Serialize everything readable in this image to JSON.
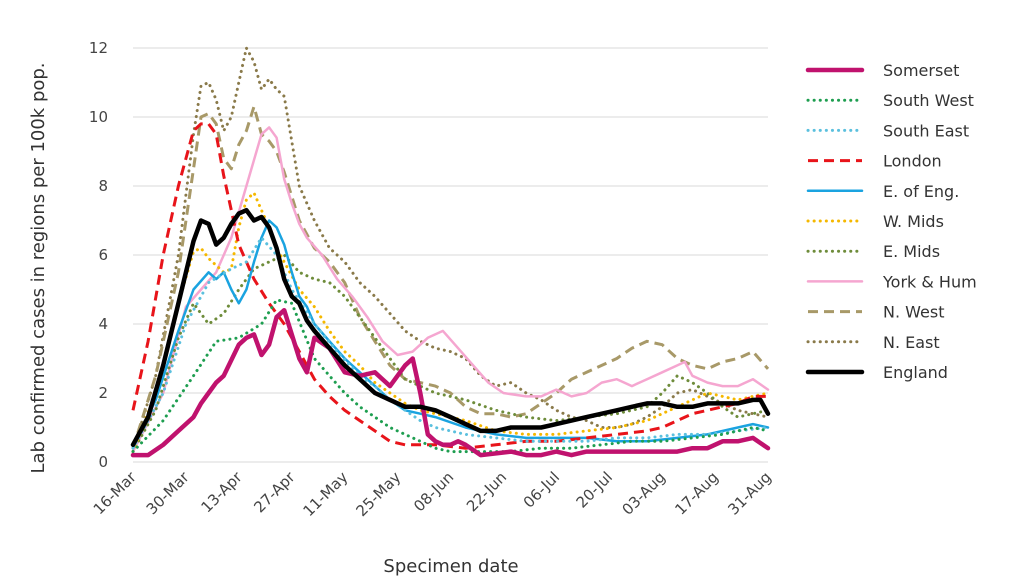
{
  "chart_data": {
    "type": "line",
    "xlabel": "Specimen date",
    "ylabel": "Lab confirmed cases in regions per 100k pop.",
    "x_ticks": [
      "16-Mar",
      "30-Mar",
      "13-Apr",
      "27-Apr",
      "11-May",
      "25-May",
      "08-Jun",
      "22-Jun",
      "06-Jul",
      "20-Jul",
      "03-Aug",
      "17-Aug",
      "31-Aug"
    ],
    "y_ticks": [
      "0",
      "2",
      "4",
      "6",
      "8",
      "10",
      "12"
    ],
    "ylim": [
      0,
      12
    ],
    "grid": "horizontal",
    "legend_position": "right",
    "series": [
      {
        "name": "Somerset",
        "color": "#c0126e",
        "style": "solid-thick",
        "x": [
          0,
          4,
          8,
          12,
          16,
          18,
          20,
          22,
          24,
          28,
          30,
          32,
          34,
          36,
          38,
          40,
          44,
          46,
          48,
          52,
          56,
          60,
          64,
          68,
          72,
          74,
          76,
          78,
          80,
          82,
          84,
          86,
          88,
          92,
          100,
          104,
          108,
          112,
          116,
          120,
          128,
          136,
          140,
          144,
          148,
          152,
          156,
          160,
          164,
          168
        ],
        "y": [
          0.2,
          0.2,
          0.5,
          0.9,
          1.3,
          1.7,
          2.0,
          2.3,
          2.5,
          3.4,
          3.6,
          3.7,
          3.1,
          3.4,
          4.2,
          4.4,
          3.0,
          2.6,
          3.6,
          3.3,
          2.6,
          2.5,
          2.6,
          2.2,
          2.8,
          3.0,
          2.0,
          0.8,
          0.6,
          0.5,
          0.5,
          0.6,
          0.5,
          0.2,
          0.3,
          0.2,
          0.2,
          0.3,
          0.2,
          0.3,
          0.3,
          0.3,
          0.3,
          0.3,
          0.4,
          0.4,
          0.6,
          0.6,
          0.7,
          0.4
        ]
      },
      {
        "name": "South West",
        "color": "#1e9e50",
        "style": "dotted",
        "x": [
          0,
          8,
          16,
          22,
          28,
          34,
          38,
          42,
          48,
          52,
          56,
          60,
          64,
          68,
          72,
          76,
          80,
          84,
          92,
          100,
          108,
          116,
          124,
          132,
          140,
          148,
          156,
          164,
          168
        ],
        "y": [
          0.3,
          1.2,
          2.5,
          3.5,
          3.6,
          4.0,
          4.7,
          4.6,
          3.0,
          2.5,
          2.0,
          1.6,
          1.3,
          1.0,
          0.8,
          0.6,
          0.4,
          0.3,
          0.3,
          0.3,
          0.4,
          0.4,
          0.5,
          0.6,
          0.6,
          0.7,
          0.8,
          1.0,
          0.9
        ]
      },
      {
        "name": "South East",
        "color": "#5bc0de",
        "style": "dotted",
        "x": [
          0,
          8,
          14,
          20,
          26,
          30,
          34,
          38,
          42,
          48,
          54,
          60,
          64,
          68,
          72,
          76,
          80,
          88,
          96,
          104,
          112,
          120,
          128,
          136,
          144,
          152,
          160,
          168
        ],
        "y": [
          0.4,
          2.0,
          4.0,
          5.2,
          5.6,
          5.8,
          6.5,
          6.0,
          5.0,
          4.0,
          3.2,
          2.5,
          2.2,
          1.8,
          1.5,
          1.2,
          1.0,
          0.8,
          0.7,
          0.6,
          0.6,
          0.6,
          0.7,
          0.7,
          0.8,
          0.8,
          0.9,
          1.0
        ]
      },
      {
        "name": "London",
        "color": "#e8141a",
        "style": "dashed",
        "x": [
          0,
          4,
          8,
          12,
          16,
          18,
          20,
          22,
          24,
          26,
          28,
          32,
          36,
          40,
          44,
          48,
          52,
          56,
          60,
          64,
          68,
          72,
          80,
          88,
          96,
          104,
          112,
          120,
          128,
          136,
          140,
          144,
          148,
          152,
          156,
          160,
          164,
          168
        ],
        "y": [
          1.5,
          3.5,
          6.0,
          8.0,
          9.6,
          9.8,
          9.8,
          9.5,
          8.3,
          7.3,
          6.3,
          5.3,
          4.6,
          4.0,
          3.2,
          2.4,
          1.9,
          1.5,
          1.2,
          0.9,
          0.6,
          0.5,
          0.5,
          0.4,
          0.5,
          0.6,
          0.6,
          0.7,
          0.8,
          0.9,
          1.0,
          1.2,
          1.4,
          1.5,
          1.6,
          1.7,
          1.9,
          1.9
        ]
      },
      {
        "name": "E. of Eng.",
        "color": "#1aa3e0",
        "style": "solid",
        "x": [
          0,
          6,
          12,
          16,
          20,
          22,
          24,
          26,
          28,
          30,
          32,
          34,
          36,
          38,
          40,
          42,
          44,
          46,
          48,
          52,
          56,
          60,
          64,
          68,
          72,
          76,
          80,
          88,
          96,
          104,
          112,
          120,
          128,
          136,
          144,
          152,
          160,
          164,
          168
        ],
        "y": [
          0.4,
          1.8,
          3.8,
          5.0,
          5.5,
          5.3,
          5.5,
          5.0,
          4.6,
          5.0,
          5.8,
          6.5,
          7.0,
          6.8,
          6.3,
          5.5,
          4.8,
          4.5,
          4.0,
          3.5,
          3.0,
          2.6,
          2.2,
          1.8,
          1.5,
          1.4,
          1.3,
          1.0,
          0.8,
          0.7,
          0.7,
          0.7,
          0.6,
          0.6,
          0.7,
          0.8,
          1.0,
          1.1,
          1.0
        ]
      },
      {
        "name": "W. Mids",
        "color": "#f5b800",
        "style": "dotted",
        "x": [
          0,
          6,
          12,
          16,
          18,
          20,
          22,
          24,
          26,
          28,
          30,
          32,
          34,
          36,
          38,
          40,
          44,
          48,
          52,
          56,
          60,
          64,
          68,
          72,
          76,
          80,
          88,
          96,
          104,
          112,
          120,
          128,
          136,
          144,
          152,
          156,
          160,
          164,
          168
        ],
        "y": [
          0.3,
          2.0,
          4.6,
          6.1,
          6.2,
          5.9,
          5.7,
          5.5,
          5.6,
          6.8,
          7.6,
          7.8,
          7.3,
          6.8,
          6.2,
          5.8,
          5.0,
          4.5,
          3.8,
          3.2,
          2.8,
          2.3,
          2.0,
          1.7,
          1.5,
          1.4,
          1.2,
          0.9,
          0.8,
          0.8,
          0.9,
          1.0,
          1.2,
          1.6,
          2.0,
          1.9,
          1.8,
          1.9,
          2.0
        ]
      },
      {
        "name": "E. Mids",
        "color": "#6e8c3a",
        "style": "dotted",
        "x": [
          0,
          6,
          12,
          16,
          20,
          24,
          28,
          32,
          36,
          40,
          44,
          48,
          52,
          56,
          60,
          64,
          68,
          72,
          80,
          88,
          96,
          104,
          112,
          120,
          128,
          136,
          140,
          144,
          148,
          152,
          156,
          160,
          164,
          168
        ],
        "y": [
          0.3,
          1.5,
          3.6,
          4.6,
          4.0,
          4.3,
          5.0,
          5.6,
          5.8,
          6.0,
          5.5,
          5.3,
          5.2,
          4.8,
          4.2,
          3.6,
          3.0,
          2.4,
          2.0,
          1.8,
          1.5,
          1.3,
          1.2,
          1.3,
          1.4,
          1.6,
          2.0,
          2.5,
          2.3,
          2.0,
          1.6,
          1.3,
          1.4,
          1.5
        ]
      },
      {
        "name": "York & Hum",
        "color": "#f5a6d0",
        "style": "solid",
        "x": [
          0,
          8,
          14,
          18,
          22,
          26,
          30,
          34,
          36,
          38,
          40,
          42,
          44,
          46,
          50,
          54,
          58,
          62,
          66,
          70,
          74,
          78,
          82,
          86,
          90,
          94,
          98,
          104,
          108,
          112,
          116,
          120,
          124,
          128,
          132,
          136,
          140,
          144,
          146,
          148,
          152,
          156,
          160,
          164,
          168
        ],
        "y": [
          0.3,
          2.0,
          4.5,
          5.0,
          5.5,
          6.5,
          8.0,
          9.5,
          9.7,
          9.4,
          8.2,
          7.5,
          6.9,
          6.5,
          6.0,
          5.3,
          4.8,
          4.2,
          3.5,
          3.1,
          3.2,
          3.6,
          3.8,
          3.3,
          2.8,
          2.3,
          2.0,
          1.9,
          1.9,
          2.1,
          1.9,
          2.0,
          2.3,
          2.4,
          2.2,
          2.4,
          2.6,
          2.8,
          2.9,
          2.5,
          2.3,
          2.2,
          2.2,
          2.4,
          2.1
        ]
      },
      {
        "name": "N. West",
        "color": "#a89968",
        "style": "dashed",
        "x": [
          0,
          6,
          12,
          16,
          18,
          20,
          22,
          24,
          26,
          28,
          30,
          32,
          34,
          36,
          38,
          40,
          44,
          48,
          52,
          56,
          60,
          64,
          68,
          72,
          76,
          80,
          84,
          88,
          92,
          96,
          100,
          104,
          108,
          112,
          116,
          120,
          124,
          128,
          132,
          136,
          140,
          144,
          148,
          152,
          156,
          160,
          164,
          168
        ],
        "y": [
          0.4,
          2.5,
          5.5,
          8.5,
          10.0,
          10.1,
          9.8,
          8.8,
          8.5,
          9.2,
          9.6,
          10.3,
          9.5,
          9.3,
          9.0,
          8.4,
          7.0,
          6.2,
          5.8,
          5.2,
          4.2,
          3.5,
          2.8,
          2.4,
          2.3,
          2.2,
          2.0,
          1.6,
          1.4,
          1.4,
          1.3,
          1.4,
          1.7,
          2.0,
          2.4,
          2.6,
          2.8,
          3.0,
          3.3,
          3.5,
          3.4,
          3.0,
          2.8,
          2.7,
          2.9,
          3.0,
          3.2,
          2.7
        ]
      },
      {
        "name": "N. East",
        "color": "#8a7a4a",
        "style": "dotted",
        "x": [
          0,
          6,
          12,
          16,
          18,
          20,
          22,
          24,
          26,
          28,
          30,
          32,
          34,
          36,
          38,
          40,
          44,
          48,
          52,
          56,
          60,
          64,
          68,
          72,
          76,
          80,
          84,
          88,
          92,
          96,
          100,
          104,
          108,
          112,
          116,
          120,
          124,
          128,
          132,
          136,
          140,
          144,
          148,
          152,
          156,
          160,
          164,
          168
        ],
        "y": [
          0.3,
          2.5,
          6.0,
          9.5,
          10.9,
          11.0,
          10.5,
          9.6,
          10.0,
          11.0,
          12.0,
          11.6,
          10.8,
          11.1,
          10.8,
          10.6,
          8.0,
          7.0,
          6.2,
          5.8,
          5.2,
          4.8,
          4.3,
          3.8,
          3.5,
          3.3,
          3.2,
          3.0,
          2.5,
          2.2,
          2.3,
          2.0,
          1.8,
          1.5,
          1.3,
          1.2,
          1.0,
          1.0,
          1.1,
          1.3,
          1.6,
          2.0,
          2.1,
          1.9,
          1.7,
          1.5,
          1.4,
          1.3
        ]
      },
      {
        "name": "England",
        "color": "#000000",
        "style": "solid-thick",
        "x": [
          0,
          4,
          8,
          12,
          16,
          18,
          20,
          22,
          24,
          26,
          28,
          30,
          32,
          34,
          36,
          38,
          40,
          42,
          44,
          46,
          48,
          52,
          56,
          60,
          64,
          68,
          72,
          76,
          80,
          84,
          88,
          92,
          96,
          100,
          104,
          108,
          112,
          116,
          120,
          124,
          128,
          132,
          136,
          140,
          144,
          148,
          152,
          156,
          160,
          164,
          166,
          168
        ],
        "y": [
          0.5,
          1.3,
          2.8,
          4.6,
          6.4,
          7.0,
          6.9,
          6.3,
          6.5,
          6.9,
          7.2,
          7.3,
          7.0,
          7.1,
          6.8,
          6.2,
          5.3,
          4.8,
          4.6,
          4.1,
          3.8,
          3.3,
          2.8,
          2.4,
          2.0,
          1.8,
          1.6,
          1.6,
          1.5,
          1.3,
          1.1,
          0.9,
          0.9,
          1.0,
          1.0,
          1.0,
          1.1,
          1.2,
          1.3,
          1.4,
          1.5,
          1.6,
          1.7,
          1.7,
          1.6,
          1.6,
          1.7,
          1.7,
          1.7,
          1.8,
          1.8,
          1.4
        ]
      }
    ]
  }
}
